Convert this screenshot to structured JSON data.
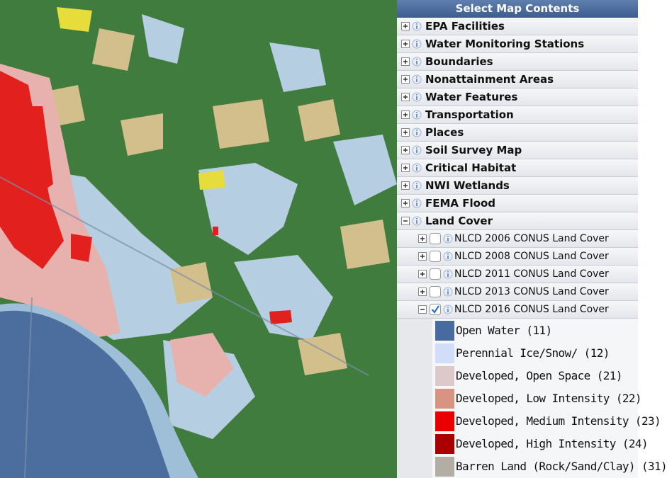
{
  "header": {
    "title": "Select Map Contents"
  },
  "layers": [
    {
      "label": "EPA Facilities"
    },
    {
      "label": "Water Monitoring Stations"
    },
    {
      "label": "Boundaries"
    },
    {
      "label": "Nonattainment Areas"
    },
    {
      "label": "Water Features"
    },
    {
      "label": "Transportation"
    },
    {
      "label": "Places"
    },
    {
      "label": "Soil Survey Map"
    },
    {
      "label": "Critical Habitat"
    },
    {
      "label": "NWI Wetlands"
    },
    {
      "label": "FEMA Flood"
    },
    {
      "label": "Land Cover",
      "expanded": true,
      "sublayers": [
        {
          "label": "NLCD 2006 CONUS Land Cover",
          "checked": false
        },
        {
          "label": "NLCD 2008 CONUS Land Cover",
          "checked": false
        },
        {
          "label": "NLCD 2011 CONUS Land Cover",
          "checked": false
        },
        {
          "label": "NLCD 2013 CONUS Land Cover",
          "checked": false
        },
        {
          "label": "NLCD 2016 CONUS Land Cover",
          "checked": true
        }
      ]
    }
  ],
  "legend": [
    {
      "label": "Open Water (11)",
      "color": "#476ba1"
    },
    {
      "label": "Perennial Ice/Snow/ (12)",
      "color": "#d1ddf9"
    },
    {
      "label": "Developed, Open Space (21)",
      "color": "#ddc9c9"
    },
    {
      "label": "Developed, Low Intensity (22)",
      "color": "#d89382"
    },
    {
      "label": "Developed, Medium Intensity (23)",
      "color": "#eb0000"
    },
    {
      "label": "Developed, High Intensity (24)",
      "color": "#ab0000"
    },
    {
      "label": "Barren Land (Rock/Sand/Clay) (31)",
      "color": "#b3aea3"
    }
  ]
}
